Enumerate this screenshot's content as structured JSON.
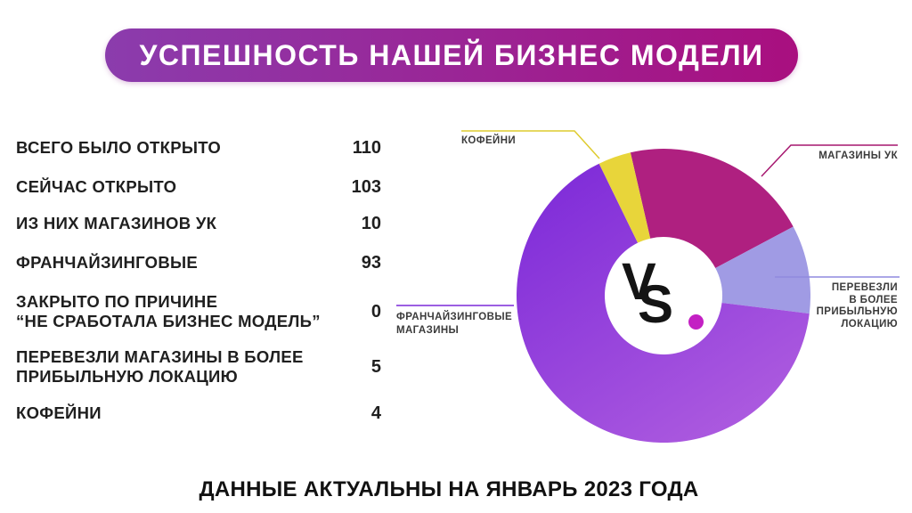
{
  "title": "УСПЕШНОСТЬ НАШЕЙ БИЗНЕС МОДЕЛИ",
  "stats": {
    "rows": [
      {
        "label": "ВСЕГО БЫЛО ОТКРЫТО",
        "value": "110"
      },
      {
        "label": "СЕЙЧАС ОТКРЫТО",
        "value": "103"
      },
      {
        "label": "ИЗ НИХ МАГАЗИНОВ УК",
        "value": "10"
      },
      {
        "label": "ФРАНЧАЙЗИНГОВЫЕ",
        "value": "93"
      },
      {
        "label": "ЗАКРЫТО ПО ПРИЧИНЕ\n“НЕ СРАБОТАЛА БИЗНЕС МОДЕЛЬ”",
        "value": "0"
      },
      {
        "label": "ПЕРЕВЕЗЛИ МАГАЗИНЫ В БОЛЕЕ\nПРИБЫЛЬНУЮ ЛОКАЦИЮ",
        "value": "5"
      },
      {
        "label": "КОФЕЙНИ",
        "value": "4"
      }
    ]
  },
  "chart_data": {
    "type": "pie",
    "donut": true,
    "title": "",
    "legend_position": "callouts",
    "segments": [
      {
        "label": "МАГАЗИНЫ УК",
        "value": 10,
        "start_deg": -13,
        "end_deg": 62,
        "color": "#AF2080"
      },
      {
        "label": "ПЕРЕВЕЗЛИ В БОЛЕЕ ПРИБЫЛЬНУЮ ЛОКАЦИЮ",
        "value": 5,
        "start_deg": 62,
        "end_deg": 97,
        "color": "#A09BE4"
      },
      {
        "label": "ФРАНЧАЙЗИНГОВЫЕ МАГАЗИНЫ",
        "value": 93,
        "start_deg": 97,
        "end_deg": 334,
        "color": "purple-gradient"
      },
      {
        "label": "КОФЕЙНИ",
        "value": 4,
        "start_deg": 334,
        "end_deg": 347,
        "color": "#E8D53A"
      }
    ],
    "purple_gradient": [
      "#7B28D8",
      "#AC5ADF"
    ]
  },
  "callouts": {
    "kofeyni": "КОФЕЙНИ",
    "magaziny_uk": "МАГАЗИНЫ УК",
    "perevezli": "ПЕРЕВЕЗЛИ\nВ БОЛЕЕ\nПРИБЫЛЬНУЮ\nЛОКАЦИЮ",
    "franchise": "ФРАНЧАЙЗИНГОВЫЕ\nМАГАЗИНЫ"
  },
  "vs_logo": {
    "v": "V",
    "s": "S"
  },
  "footer": "ДАННЫЕ АКТУАЛЬНЫ НА ЯНВАРЬ 2023 ГОДА",
  "colors": {
    "title_gradient_start": "#8B3CAD",
    "title_gradient_end": "#A90F7F",
    "segment_magenta": "#AF2080",
    "segment_lavender": "#A09BE4",
    "segment_yellow": "#E8D53A",
    "segment_purple_start": "#7B28D8",
    "segment_purple_end": "#AC5ADF",
    "vs_dot": "#C320C3",
    "text_dark": "#1F1F1F"
  }
}
